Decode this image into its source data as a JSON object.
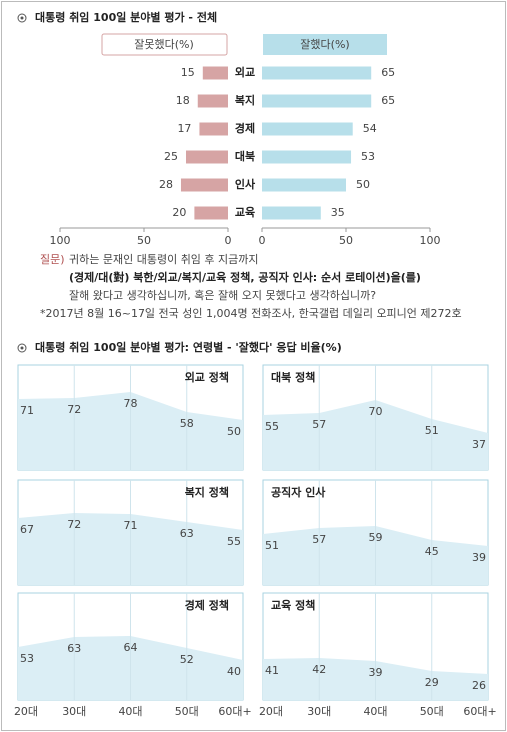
{
  "chart_data": [
    {
      "type": "butterfly",
      "title": "대통령 취임 100일 분야별 평가 - 전체",
      "categories": [
        "외교",
        "복지",
        "경제",
        "대북",
        "인사",
        "교육"
      ],
      "series": [
        {
          "name": "잘못했다(%)",
          "color": "#d6a4a4",
          "values": [
            15,
            18,
            17,
            25,
            28,
            20
          ]
        },
        {
          "name": "잘했다(%)",
          "color": "#b7dfea",
          "values": [
            65,
            65,
            54,
            53,
            50,
            35
          ]
        }
      ],
      "xlim": [
        0,
        100
      ],
      "xticks": [
        0,
        50,
        100
      ]
    },
    {
      "type": "area",
      "title": "외교 정책",
      "categories": [
        "20대",
        "30대",
        "40대",
        "50대",
        "60대+"
      ],
      "values": [
        71,
        72,
        78,
        58,
        50
      ],
      "color": "#dbeef5",
      "ylim": [
        0,
        100
      ]
    },
    {
      "type": "area",
      "title": "대북 정책",
      "categories": [
        "20대",
        "30대",
        "40대",
        "50대",
        "60대+"
      ],
      "values": [
        55,
        57,
        70,
        51,
        37
      ],
      "color": "#dbeef5",
      "ylim": [
        0,
        100
      ]
    },
    {
      "type": "area",
      "title": "복지 정책",
      "categories": [
        "20대",
        "30대",
        "40대",
        "50대",
        "60대+"
      ],
      "values": [
        67,
        72,
        71,
        63,
        55
      ],
      "color": "#dbeef5",
      "ylim": [
        0,
        100
      ]
    },
    {
      "type": "area",
      "title": "공직자 인사",
      "categories": [
        "20대",
        "30대",
        "40대",
        "50대",
        "60대+"
      ],
      "values": [
        51,
        57,
        59,
        45,
        39
      ],
      "color": "#dbeef5",
      "ylim": [
        0,
        100
      ]
    },
    {
      "type": "area",
      "title": "경제 정책",
      "categories": [
        "20대",
        "30대",
        "40대",
        "50대",
        "60대+"
      ],
      "values": [
        53,
        63,
        64,
        52,
        40
      ],
      "color": "#dbeef5",
      "ylim": [
        0,
        100
      ]
    },
    {
      "type": "area",
      "title": "교육 정책",
      "categories": [
        "20대",
        "30대",
        "40대",
        "50대",
        "60대+"
      ],
      "values": [
        41,
        42,
        39,
        29,
        26
      ],
      "color": "#dbeef5",
      "ylim": [
        0,
        100
      ]
    }
  ],
  "question": {
    "label": "질문)",
    "lines": [
      "귀하는 문재인 대통령이 취임 후 지금까지",
      "(경제/대(對) 북한/외교/복지/교육 정책, 공직자 인사: 순서 로테이션)을(를)",
      "잘해 왔다고 생각하십니까, 혹은 잘해 오지 못했다고 생각하십니까?"
    ]
  },
  "footnote": "*2017년 8월 16~17일 전국 성인 1,004명 전화조사, 한국갤럽 데일리 오피니언 제272호",
  "section_title": "대통령 취임 100일 분야별 평가: 연령별 - '잘했다' 응답 비율(%)"
}
